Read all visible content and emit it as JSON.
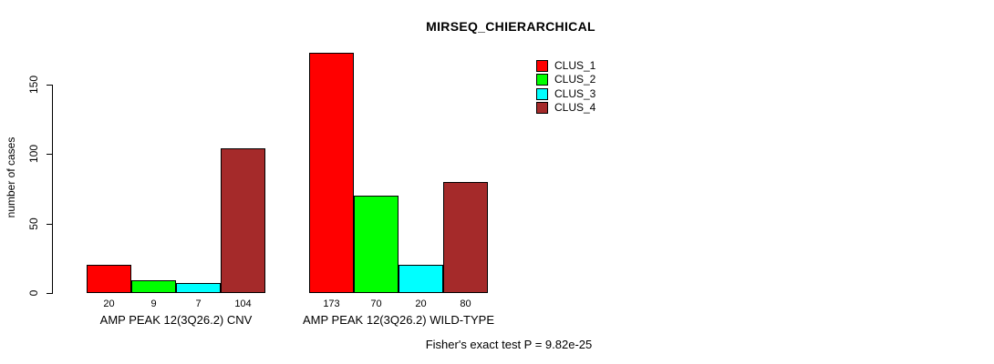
{
  "title": "MIRSEQ_CHIERARCHICAL",
  "footer": "Fisher's exact test P = 9.82e-25",
  "y_axis": {
    "label": "number of cases",
    "ticks": [
      0,
      50,
      100,
      150
    ]
  },
  "legend": {
    "items": [
      {
        "label": "CLUS_1",
        "color": "#FF0000"
      },
      {
        "label": "CLUS_2",
        "color": "#00FF00"
      },
      {
        "label": "CLUS_3",
        "color": "#00FFFF"
      },
      {
        "label": "CLUS_4",
        "color": "#A52A2A"
      }
    ]
  },
  "chart_data": {
    "type": "bar",
    "title": "MIRSEQ_CHIERARCHICAL",
    "xlabel": "",
    "ylabel": "number of cases",
    "ylim": [
      0,
      175
    ],
    "yticks": [
      0,
      50,
      100,
      150
    ],
    "grid": false,
    "legend_position": "top-right",
    "categories": [
      "AMP PEAK 12(3Q26.2) CNV",
      "AMP PEAK 12(3Q26.2) WILD-TYPE"
    ],
    "series": [
      {
        "name": "CLUS_1",
        "color": "#FF0000",
        "values": [
          20,
          173
        ]
      },
      {
        "name": "CLUS_2",
        "color": "#00FF00",
        "values": [
          9,
          70
        ]
      },
      {
        "name": "CLUS_3",
        "color": "#00FFFF",
        "values": [
          7,
          20
        ]
      },
      {
        "name": "CLUS_4",
        "color": "#A52A2A",
        "values": [
          104,
          80
        ]
      }
    ],
    "bar_value_labels": [
      [
        20,
        9,
        7,
        104
      ],
      [
        173,
        70,
        20,
        80
      ]
    ],
    "annotation": "Fisher's exact test P = 9.82e-25"
  }
}
